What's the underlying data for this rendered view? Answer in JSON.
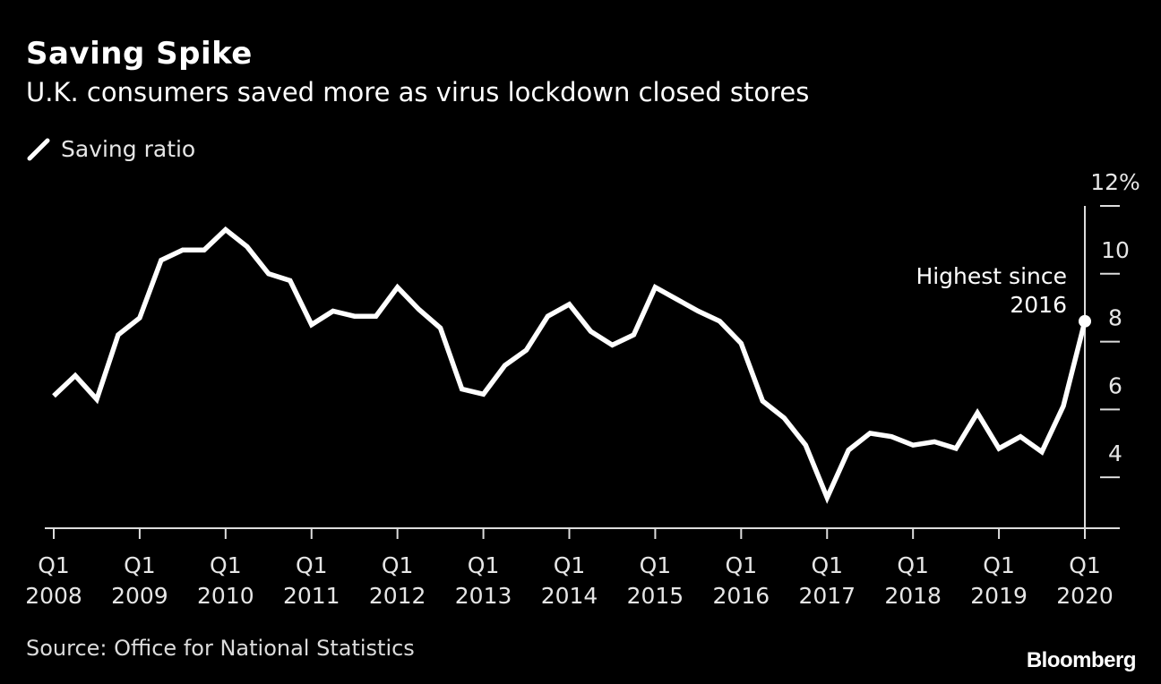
{
  "title": "Saving Spike",
  "subtitle": "U.K. consumers saved more as virus lockdown closed stores",
  "source": "Source: Office for National Statistics",
  "brand": "Bloomberg",
  "colors": {
    "background": "#000000",
    "line": "#ffffff",
    "axis": "#dddddd",
    "text": "#e6e6e6"
  },
  "chart_data": {
    "type": "line",
    "series": [
      {
        "name": "Saving ratio",
        "x": [
          "Q1 2008",
          "Q2 2008",
          "Q3 2008",
          "Q4 2008",
          "Q1 2009",
          "Q2 2009",
          "Q3 2009",
          "Q4 2009",
          "Q1 2010",
          "Q2 2010",
          "Q3 2010",
          "Q4 2010",
          "Q1 2011",
          "Q2 2011",
          "Q3 2011",
          "Q4 2011",
          "Q1 2012",
          "Q2 2012",
          "Q3 2012",
          "Q4 2012",
          "Q1 2013",
          "Q2 2013",
          "Q3 2013",
          "Q4 2013",
          "Q1 2014",
          "Q2 2014",
          "Q3 2014",
          "Q4 2014",
          "Q1 2015",
          "Q2 2015",
          "Q3 2015",
          "Q4 2015",
          "Q1 2016",
          "Q2 2016",
          "Q3 2016",
          "Q4 2016",
          "Q1 2017",
          "Q2 2017",
          "Q3 2017",
          "Q4 2017",
          "Q1 2018",
          "Q2 2018",
          "Q3 2018",
          "Q4 2018",
          "Q1 2019",
          "Q2 2019",
          "Q3 2019",
          "Q4 2019",
          "Q1 2020"
        ],
        "values": [
          6.4,
          7.0,
          6.3,
          8.2,
          8.7,
          10.4,
          10.7,
          10.7,
          11.3,
          10.8,
          10.0,
          9.8,
          8.5,
          8.9,
          8.75,
          8.75,
          9.6,
          8.95,
          8.4,
          6.6,
          6.45,
          7.3,
          7.75,
          8.75,
          9.1,
          8.3,
          7.9,
          8.2,
          9.6,
          9.25,
          8.9,
          8.6,
          7.95,
          6.25,
          5.75,
          4.95,
          3.4,
          4.8,
          5.3,
          5.2,
          4.95,
          5.05,
          4.85,
          5.9,
          4.85,
          5.2,
          4.75,
          6.1,
          8.6
        ]
      }
    ],
    "xticks": [
      {
        "line1": "Q1",
        "line2": "2008",
        "index": 0
      },
      {
        "line1": "Q1",
        "line2": "2009",
        "index": 4
      },
      {
        "line1": "Q1",
        "line2": "2010",
        "index": 8
      },
      {
        "line1": "Q1",
        "line2": "2011",
        "index": 12
      },
      {
        "line1": "Q1",
        "line2": "2012",
        "index": 16
      },
      {
        "line1": "Q1",
        "line2": "2013",
        "index": 20
      },
      {
        "line1": "Q1",
        "line2": "2014",
        "index": 24
      },
      {
        "line1": "Q1",
        "line2": "2015",
        "index": 28
      },
      {
        "line1": "Q1",
        "line2": "2016",
        "index": 32
      },
      {
        "line1": "Q1",
        "line2": "2017",
        "index": 36
      },
      {
        "line1": "Q1",
        "line2": "2018",
        "index": 40
      },
      {
        "line1": "Q1",
        "line2": "2019",
        "index": 44
      },
      {
        "line1": "Q1",
        "line2": "2020",
        "index": 48
      }
    ],
    "yticks": [
      {
        "value": 12,
        "label": "12%"
      },
      {
        "value": 10,
        "label": "10"
      },
      {
        "value": 8,
        "label": "8"
      },
      {
        "value": 6,
        "label": "6"
      },
      {
        "value": 4,
        "label": "4"
      }
    ],
    "ylim": [
      2.5,
      12
    ],
    "grid": false,
    "legend_position": "top-left",
    "annotation": {
      "lines": [
        "Highest since",
        "2016"
      ],
      "index": 48
    }
  }
}
